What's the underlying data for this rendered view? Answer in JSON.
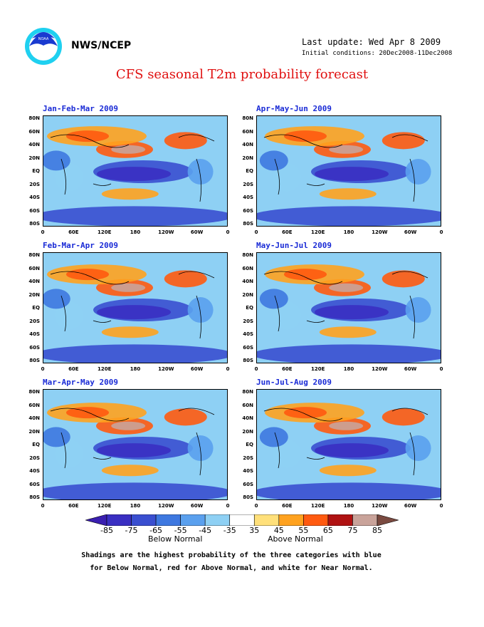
{
  "header": {
    "agency": "NWS/NCEP",
    "last_update": "Last update: Wed Apr 8 2009",
    "initial_conditions": "Initial conditions: 20Dec2008-11Dec2008",
    "title": "CFS seasonal T2m probability forecast",
    "logo": "noaa-logo"
  },
  "panels": [
    {
      "title": "Jan-Feb-Mar 2009"
    },
    {
      "title": "Apr-May-Jun 2009"
    },
    {
      "title": "Feb-Mar-Apr 2009"
    },
    {
      "title": "May-Jun-Jul 2009"
    },
    {
      "title": "Mar-Apr-May 2009"
    },
    {
      "title": "Jun-Jul-Aug 2009"
    }
  ],
  "axes": {
    "lat_labels": [
      "80N",
      "60N",
      "40N",
      "20N",
      "EQ",
      "20S",
      "40S",
      "60S",
      "80S"
    ],
    "lon_labels": [
      "0",
      "60E",
      "120E",
      "180",
      "120W",
      "60W",
      "0"
    ]
  },
  "colorbar": {
    "labels": [
      "-85",
      "-75",
      "-65",
      "-55",
      "-45",
      "-35",
      "35",
      "45",
      "55",
      "65",
      "75",
      "85"
    ],
    "colors": [
      "#3a2fc2",
      "#3a4fd0",
      "#3e78e0",
      "#5aa0ee",
      "#8ed0f4",
      "#ffffff",
      "#ffe07a",
      "#ffa21f",
      "#ff5a10",
      "#b01212",
      "#c9a39a"
    ],
    "end_low": "#3a1fb0",
    "end_high": "#7a4a40",
    "below_label": "Below Normal",
    "above_label": "Above Normal"
  },
  "footnote": {
    "line1": "Shadings are the highest probability of the three categories with blue",
    "line2": "for Below Normal, red for Above Normal, and white for Near Normal."
  }
}
